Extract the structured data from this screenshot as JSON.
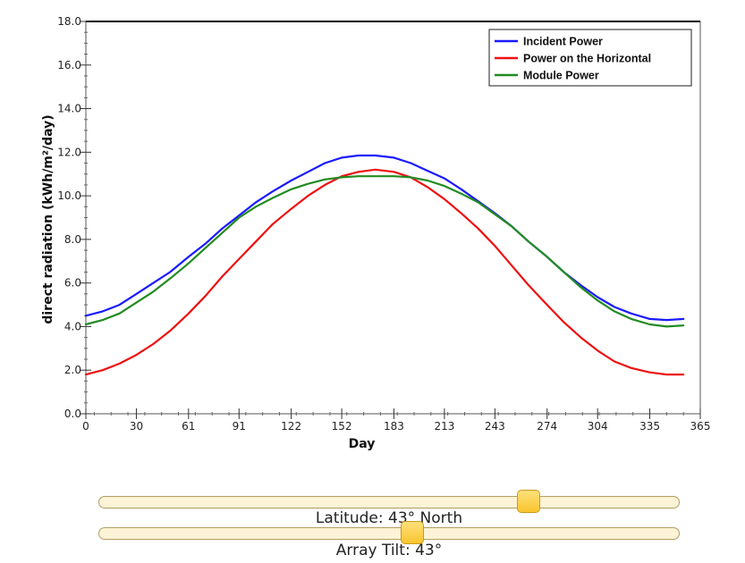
{
  "chart_data": {
    "type": "line",
    "xlabel": "Day",
    "ylabel": "direct radiation (kWh/m²/day)",
    "xlim": [
      0,
      365
    ],
    "ylim": [
      0,
      18
    ],
    "x_ticks": [
      "0",
      "30",
      "61",
      "91",
      "122",
      "152",
      "183",
      "213",
      "243",
      "274",
      "304",
      "335",
      "365"
    ],
    "y_ticks": [
      "0.0",
      "2.0",
      "4.0",
      "6.0",
      "8.0",
      "10.0",
      "12.0",
      "14.0",
      "16.0",
      "18.0"
    ],
    "grid": false,
    "legend_position": "top-right",
    "x": [
      0,
      10,
      20,
      30,
      40,
      50,
      61,
      71,
      81,
      91,
      101,
      111,
      122,
      132,
      142,
      152,
      162,
      172,
      183,
      193,
      203,
      213,
      223,
      233,
      243,
      253,
      263,
      274,
      284,
      294,
      304,
      314,
      324,
      335,
      345,
      355
    ],
    "series": [
      {
        "name": "Incident Power",
        "color": "#1a1aff",
        "values": [
          4.5,
          4.7,
          5.0,
          5.5,
          6.0,
          6.5,
          7.2,
          7.8,
          8.5,
          9.1,
          9.7,
          10.2,
          10.7,
          11.1,
          11.5,
          11.75,
          11.85,
          11.85,
          11.75,
          11.5,
          11.15,
          10.8,
          10.3,
          9.75,
          9.2,
          8.6,
          7.9,
          7.2,
          6.5,
          5.9,
          5.35,
          4.9,
          4.6,
          4.35,
          4.3,
          4.35
        ]
      },
      {
        "name": "Power on the Horizontal",
        "color": "#ee1111",
        "values": [
          1.8,
          2.0,
          2.3,
          2.7,
          3.2,
          3.8,
          4.6,
          5.4,
          6.3,
          7.1,
          7.9,
          8.7,
          9.4,
          10.0,
          10.5,
          10.9,
          11.1,
          11.2,
          11.1,
          10.85,
          10.4,
          9.85,
          9.2,
          8.5,
          7.7,
          6.8,
          5.9,
          5.0,
          4.2,
          3.5,
          2.9,
          2.4,
          2.1,
          1.9,
          1.8,
          1.8
        ]
      },
      {
        "name": "Module Power",
        "color": "#228b22",
        "values": [
          4.1,
          4.3,
          4.6,
          5.1,
          5.6,
          6.2,
          6.9,
          7.6,
          8.3,
          9.0,
          9.5,
          9.9,
          10.3,
          10.55,
          10.75,
          10.85,
          10.9,
          10.9,
          10.9,
          10.85,
          10.7,
          10.45,
          10.1,
          9.7,
          9.15,
          8.6,
          7.9,
          7.2,
          6.5,
          5.8,
          5.2,
          4.7,
          4.35,
          4.1,
          4.0,
          4.05
        ]
      }
    ]
  },
  "controls": {
    "latitude": {
      "label": "Latitude: 43° North",
      "value": 43,
      "fraction": 0.74
    },
    "tilt": {
      "label": "Array Tilt: 43°",
      "value": 43,
      "fraction": 0.54
    }
  }
}
